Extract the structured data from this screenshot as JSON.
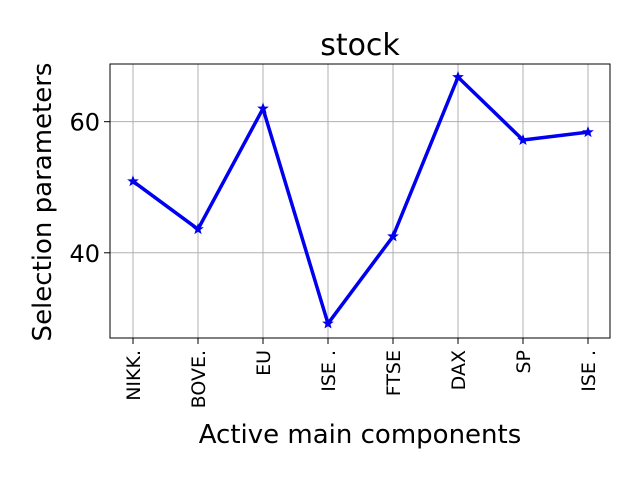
{
  "chart_data": {
    "type": "line",
    "title": "stock",
    "xlabel": "Active main components",
    "ylabel": "Selection parameters",
    "categories": [
      "NIKK.",
      "BOVE.",
      "EU",
      "ISE .",
      "FTSE",
      "DAX",
      "SP",
      "ISE ."
    ],
    "series": [
      {
        "name": "stock",
        "values": [
          50.9,
          43.6,
          62.0,
          29.2,
          42.5,
          66.8,
          57.2,
          58.4
        ],
        "color": "#0000ee",
        "marker": "star"
      }
    ],
    "yticks": [
      40,
      60
    ],
    "ylim": [
      27.0,
      68.8
    ],
    "grid": true
  }
}
